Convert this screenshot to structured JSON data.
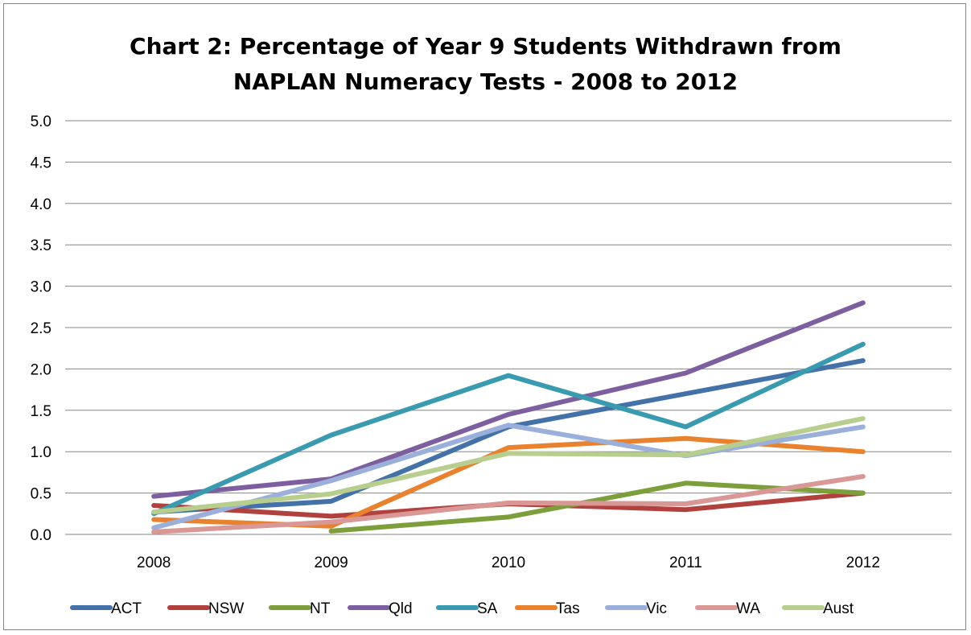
{
  "chart_data": {
    "type": "line",
    "title_lines": [
      "Chart 2: Percentage of Year 9 Students Withdrawn from",
      "NAPLAN Numeracy Tests - 2008 to 2012"
    ],
    "categories": [
      "2008",
      "2009",
      "2010",
      "2011",
      "2012"
    ],
    "ylim": [
      0,
      5
    ],
    "yticks": [
      "0.0",
      "0.5",
      "1.0",
      "1.5",
      "2.0",
      "2.5",
      "3.0",
      "3.5",
      "4.0",
      "4.5",
      "5.0"
    ],
    "grid": true,
    "legend_position": "bottom",
    "series": [
      {
        "name": "ACT",
        "color": "#4472A8",
        "values": [
          0.27,
          0.4,
          1.3,
          1.7,
          2.1
        ]
      },
      {
        "name": "NSW",
        "color": "#B0413E",
        "values": [
          0.35,
          0.22,
          0.37,
          0.3,
          0.5
        ]
      },
      {
        "name": "NT",
        "color": "#7C9F3C",
        "values": [
          null,
          0.04,
          0.21,
          0.62,
          0.5
        ]
      },
      {
        "name": "Qld",
        "color": "#7D5FA0",
        "values": [
          0.46,
          0.67,
          1.45,
          1.95,
          2.8
        ]
      },
      {
        "name": "SA",
        "color": "#3A9BB0",
        "values": [
          0.25,
          1.2,
          1.92,
          1.3,
          2.3
        ]
      },
      {
        "name": "Tas",
        "color": "#E8822E",
        "values": [
          0.18,
          0.1,
          1.05,
          1.16,
          1.0
        ]
      },
      {
        "name": "Vic",
        "color": "#9AB0DB",
        "values": [
          0.08,
          0.65,
          1.32,
          0.95,
          1.3
        ]
      },
      {
        "name": "WA",
        "color": "#D99795",
        "values": [
          0.03,
          0.15,
          0.38,
          0.37,
          0.7
        ]
      },
      {
        "name": "Aust",
        "color": "#B8CE8E",
        "values": [
          0.27,
          0.49,
          0.98,
          0.96,
          1.4
        ]
      }
    ]
  }
}
